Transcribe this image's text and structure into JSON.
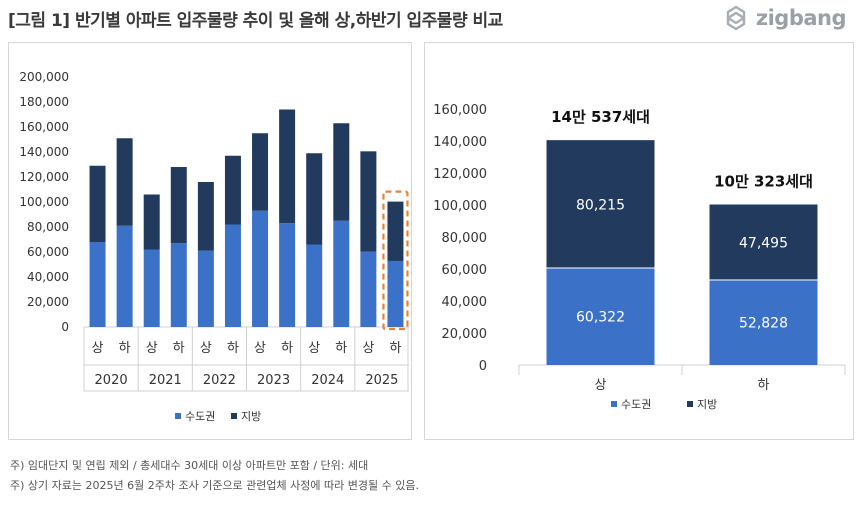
{
  "header": {
    "title": "[그림 1] 반기별 아파트 입주물량 추이 및 올해 상,하반기 입주물량 비교",
    "logo_text": "zigbang",
    "logo_icon": "zigbang-logo-icon"
  },
  "colors": {
    "capital": "#3b72c8",
    "regional": "#223a5e",
    "highlight": "#e8823a",
    "grid": "#e0e0e0"
  },
  "legend": {
    "capital": "수도권",
    "regional": "지방"
  },
  "chart_data": [
    {
      "type": "bar",
      "stacked": true,
      "categories": [
        "상",
        "하",
        "상",
        "하",
        "상",
        "하",
        "상",
        "하",
        "상",
        "하",
        "상",
        "하"
      ],
      "groups": [
        {
          "label": "2020",
          "span": 2
        },
        {
          "label": "2021",
          "span": 2
        },
        {
          "label": "2022",
          "span": 2
        },
        {
          "label": "2023",
          "span": 2
        },
        {
          "label": "2024",
          "span": 2
        },
        {
          "label": "2025",
          "span": 2
        }
      ],
      "series": [
        {
          "name": "수도권",
          "values": [
            68000,
            81000,
            62000,
            67000,
            61000,
            82000,
            93000,
            83000,
            66000,
            85000,
            60322,
            52828
          ]
        },
        {
          "name": "지방",
          "values": [
            61000,
            70000,
            44000,
            61000,
            55000,
            55000,
            62000,
            91000,
            73000,
            78000,
            80215,
            47495
          ]
        }
      ],
      "ylim": [
        0,
        200000
      ],
      "yticks": [
        "0",
        "20,000",
        "40,000",
        "60,000",
        "80,000",
        "100,000",
        "120,000",
        "140,000",
        "160,000",
        "180,000",
        "200,000"
      ],
      "highlight_index": 11,
      "legend_position": "bottom"
    },
    {
      "type": "bar",
      "stacked": true,
      "categories": [
        "상",
        "하"
      ],
      "series": [
        {
          "name": "수도권",
          "values": [
            60322,
            52828
          ],
          "labels": [
            "60,322",
            "52,828"
          ]
        },
        {
          "name": "지방",
          "values": [
            80215,
            47495
          ],
          "labels": [
            "80,215",
            "47,495"
          ]
        }
      ],
      "total_labels": [
        "14만 537세대",
        "10만 323세대"
      ],
      "ylim": [
        0,
        160000
      ],
      "yticks": [
        "0",
        "20,000",
        "40,000",
        "60,000",
        "80,000",
        "100,000",
        "120,000",
        "140,000",
        "160,000"
      ],
      "legend_position": "bottom"
    }
  ],
  "notes": [
    "주) 임대단지 및 연립 제외 / 총세대수 30세대 이상 아파트만 포함 / 단위: 세대",
    "주) 상기 자료는 2025년 6월 2주차 조사 기준으로 관련업체 사정에 따라 변경될 수 있음."
  ]
}
